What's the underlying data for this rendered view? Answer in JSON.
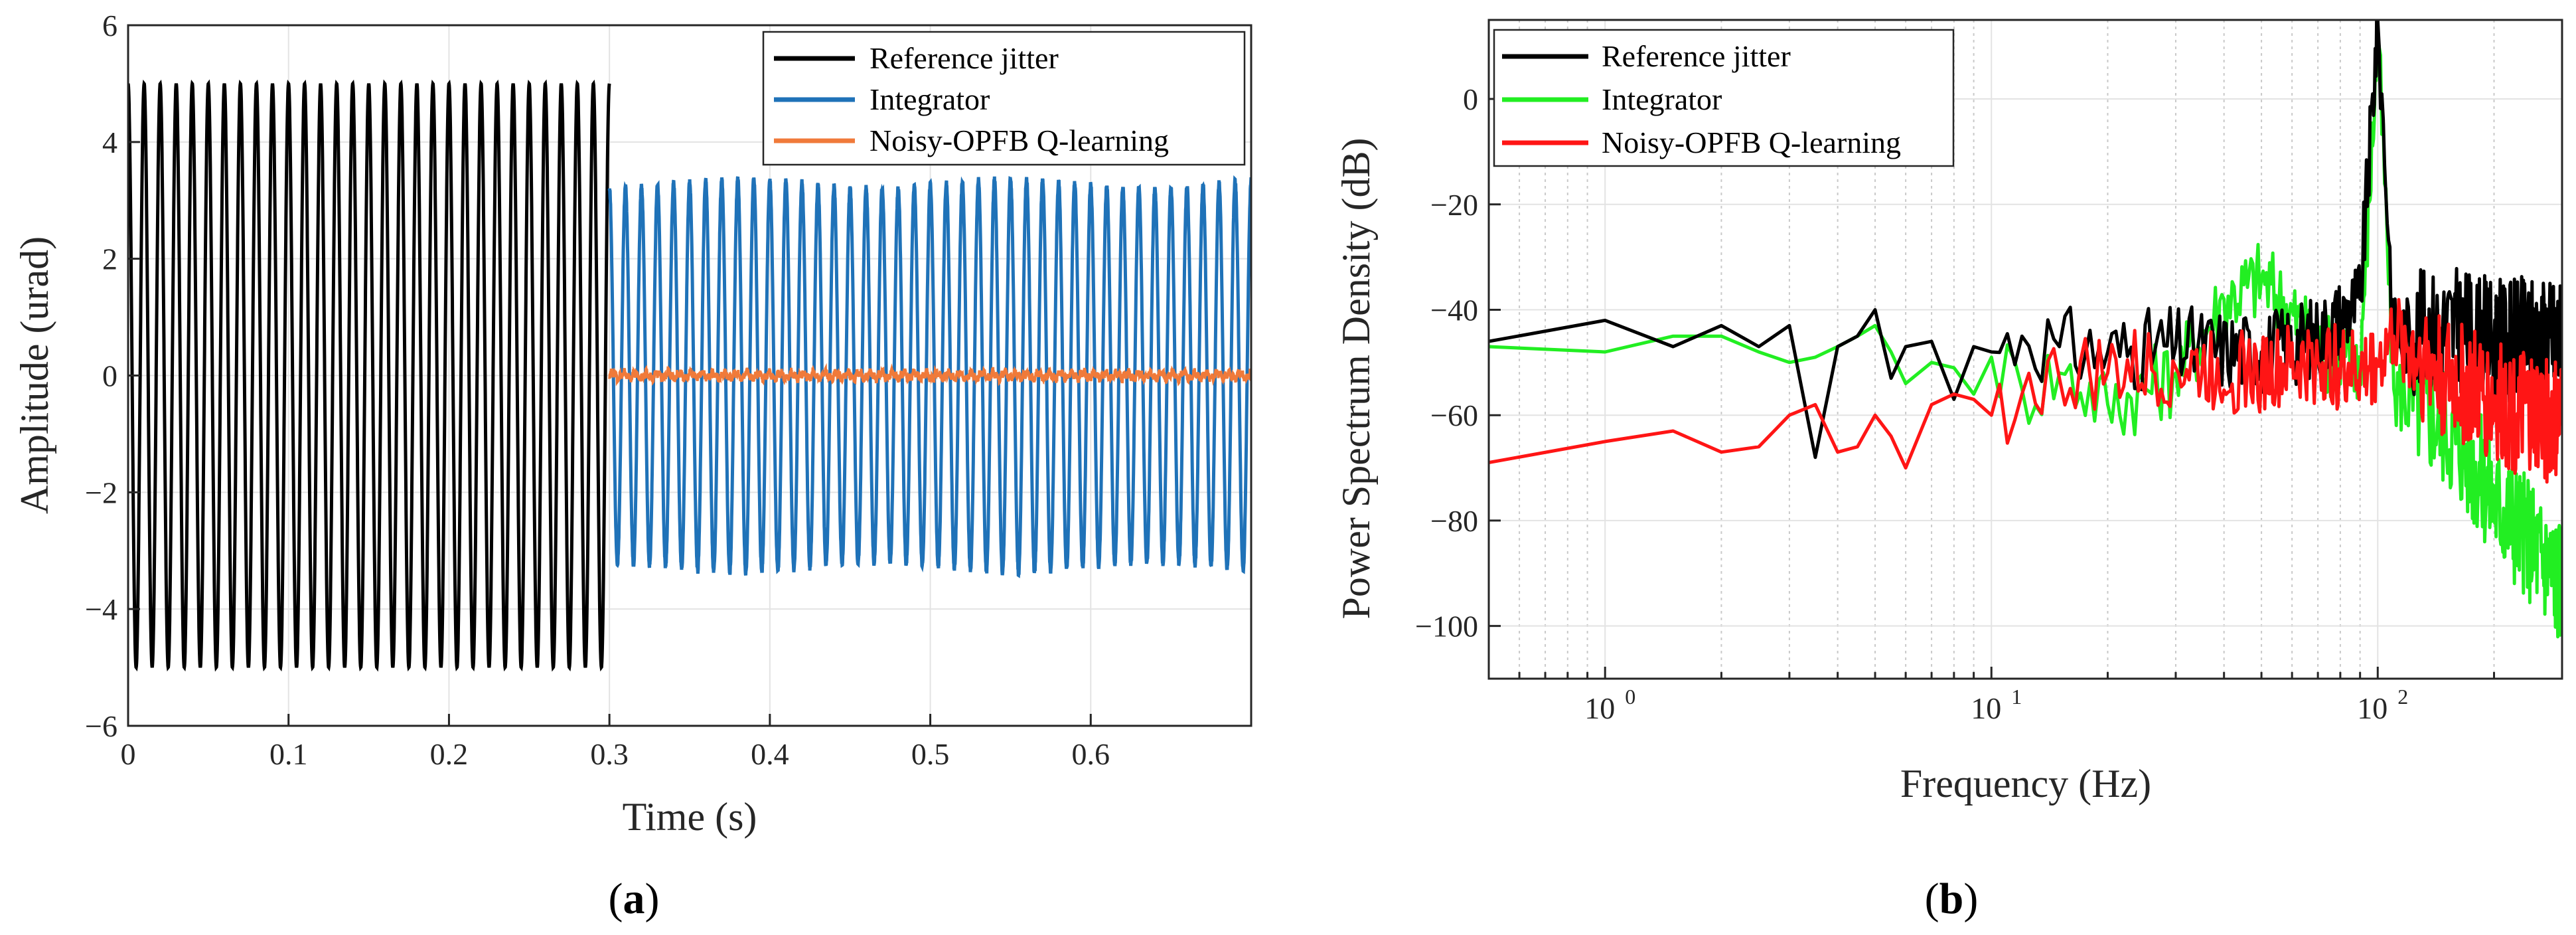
{
  "figure": {
    "panels": [
      {
        "caption": "a"
      },
      {
        "caption": "b"
      }
    ]
  },
  "chart_data": [
    {
      "type": "line",
      "panel": "a",
      "xlabel": "Time (s)",
      "ylabel": "Amplitude (urad)",
      "xlim": [
        0,
        0.7
      ],
      "ylim": [
        -6,
        6
      ],
      "xticks": [
        0,
        0.1,
        0.2,
        0.3,
        0.4,
        0.5,
        0.6
      ],
      "xtick_labels": [
        "0",
        "0.1",
        "0.2",
        "0.3",
        "0.4",
        "0.5",
        "0.6"
      ],
      "yticks": [
        -6,
        -4,
        -2,
        0,
        2,
        4,
        6
      ],
      "ytick_labels": [
        "−6",
        "−4",
        "−2",
        "0",
        "2",
        "4",
        "6"
      ],
      "grid": true,
      "legend_position": "top-right",
      "series": [
        {
          "name": "Reference jitter",
          "color": "#000000",
          "description": "sinusoid",
          "frequency_hz": 100,
          "amplitude": 5,
          "t_start": 0,
          "t_end": 0.3
        },
        {
          "name": "Integrator",
          "color": "#1f72b8",
          "description": "sinusoid",
          "frequency_hz": 100,
          "amplitude": 3.3,
          "t_start": 0.3,
          "t_end": 0.7
        },
        {
          "name": "Noisy-OPFB Q-learning",
          "color": "#f07a3a",
          "description": "small noise around zero",
          "amplitude": 0.12,
          "t_start": 0.3,
          "t_end": 0.7
        }
      ]
    },
    {
      "type": "line",
      "panel": "b",
      "xscale": "log",
      "xlabel": "Frequency (Hz)",
      "ylabel": "Power Spectrum Density (dB)",
      "xlim": [
        0.5,
        300
      ],
      "ylim": [
        -110,
        15
      ],
      "xticks": [
        1,
        10,
        100
      ],
      "xtick_base": "10",
      "xtick_exponents": [
        "0",
        "1",
        "2"
      ],
      "yticks": [
        -100,
        -80,
        -60,
        -40,
        -20,
        0
      ],
      "ytick_labels": [
        "−100",
        "−80",
        "−60",
        "−40",
        "−20",
        "0"
      ],
      "grid": true,
      "legend_position": "top-left",
      "series": [
        {
          "name": "Reference jitter",
          "color": "#000000",
          "x": [
            0.5,
            1,
            1.5,
            2,
            2.5,
            3,
            3.5,
            4,
            4.5,
            5,
            5.5,
            6,
            7,
            8,
            9,
            10,
            12,
            15,
            20,
            30,
            50,
            70,
            90,
            100,
            110,
            150,
            200,
            300
          ],
          "y": [
            -46,
            -42,
            -47,
            -43,
            -47,
            -43,
            -68,
            -47,
            -45,
            -40,
            -53,
            -47,
            -46,
            -57,
            -47,
            -48,
            -45,
            -47,
            -48,
            -47,
            -48,
            -45,
            -38,
            15,
            -45,
            -43,
            -46,
            -45
          ]
        },
        {
          "name": "Integrator",
          "color": "#22ee22",
          "x": [
            0.5,
            1,
            1.5,
            2,
            2.5,
            3,
            3.5,
            4,
            4.5,
            5,
            5.5,
            6,
            7,
            8,
            9,
            10,
            12,
            15,
            20,
            30,
            40,
            50,
            70,
            90,
            100,
            110,
            150,
            200,
            300
          ],
          "y": [
            -47,
            -48,
            -45,
            -45,
            -48,
            -50,
            -49,
            -47,
            -45,
            -43,
            -48,
            -54,
            -50,
            -51,
            -56,
            -49,
            -55,
            -52,
            -58,
            -52,
            -38,
            -34,
            -48,
            -50,
            12,
            -55,
            -62,
            -76,
            -92
          ]
        },
        {
          "name": "Noisy-OPFB Q-learning",
          "color": "#ff1515",
          "x": [
            0.5,
            1,
            1.5,
            2,
            2.5,
            3,
            3.5,
            4,
            4.5,
            5,
            5.5,
            6,
            7,
            8,
            9,
            10,
            12,
            15,
            20,
            30,
            50,
            70,
            90,
            100,
            110,
            150,
            200,
            300
          ],
          "y": [
            -69,
            -65,
            -63,
            -67,
            -66,
            -60,
            -58,
            -67,
            -66,
            -60,
            -64,
            -70,
            -58,
            -56,
            -57,
            -60,
            -56,
            -53,
            -52,
            -51,
            -52,
            -50,
            -52,
            -50,
            -45,
            -53,
            -58,
            -62
          ]
        }
      ]
    }
  ]
}
